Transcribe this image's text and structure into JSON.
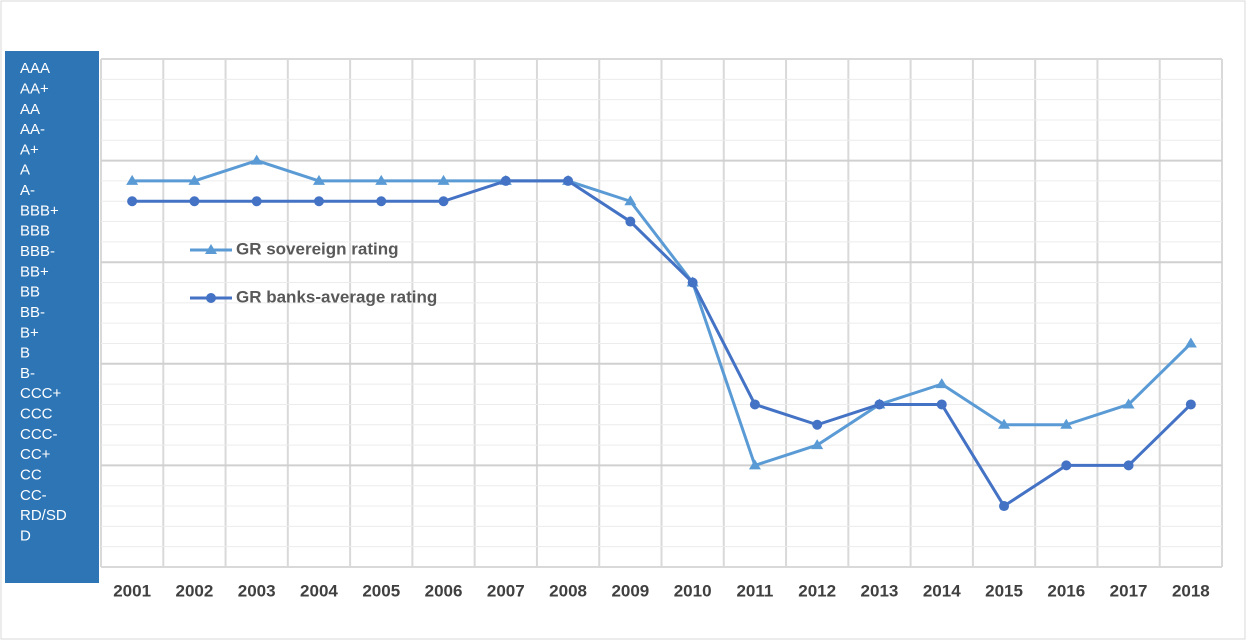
{
  "chart_data": {
    "type": "line",
    "categories": [
      "2001",
      "2002",
      "2003",
      "2004",
      "2005",
      "2006",
      "2007",
      "2008",
      "2009",
      "2010",
      "2011",
      "2012",
      "2013",
      "2014",
      "2015",
      "2016",
      "2017",
      "2018"
    ],
    "series": [
      {
        "name": "GR sovereign rating",
        "color": "#5b9bd5",
        "marker": "triangle",
        "values": [
          18,
          18,
          19,
          18,
          18,
          18,
          18,
          18,
          17,
          13,
          4,
          5,
          7,
          8,
          6,
          6,
          7,
          10
        ]
      },
      {
        "name": "GR banks-average rating",
        "color": "#4472c4",
        "marker": "circle",
        "values": [
          17,
          17,
          17,
          17,
          17,
          17,
          18,
          18,
          16,
          13,
          7,
          6,
          7,
          7,
          2,
          4,
          4,
          7
        ]
      }
    ],
    "ylim": [
      -1,
      24
    ],
    "yticks": [
      {
        "value": 23,
        "label": "AAA"
      },
      {
        "value": 22,
        "label": "AA+"
      },
      {
        "value": 21,
        "label": "AA"
      },
      {
        "value": 20,
        "label": "AA-"
      },
      {
        "value": 19,
        "label": "A+"
      },
      {
        "value": 18,
        "label": "A"
      },
      {
        "value": 17,
        "label": "A-"
      },
      {
        "value": 16,
        "label": "BBB+"
      },
      {
        "value": 15,
        "label": "BBB"
      },
      {
        "value": 14,
        "label": "BBB-"
      },
      {
        "value": 13,
        "label": "BB+"
      },
      {
        "value": 12,
        "label": "BB"
      },
      {
        "value": 11,
        "label": "BB-"
      },
      {
        "value": 10,
        "label": "B+"
      },
      {
        "value": 9,
        "label": "B"
      },
      {
        "value": 8,
        "label": "B-"
      },
      {
        "value": 7,
        "label": "CCC+"
      },
      {
        "value": 6,
        "label": "CCC"
      },
      {
        "value": 5,
        "label": "CCC-"
      },
      {
        "value": 4,
        "label": "CC+"
      },
      {
        "value": 3,
        "label": "CC"
      },
      {
        "value": 2,
        "label": "CC-"
      },
      {
        "value": 1,
        "label": "RD/SD"
      },
      {
        "value": 0,
        "label": "D"
      }
    ],
    "grid": true
  }
}
